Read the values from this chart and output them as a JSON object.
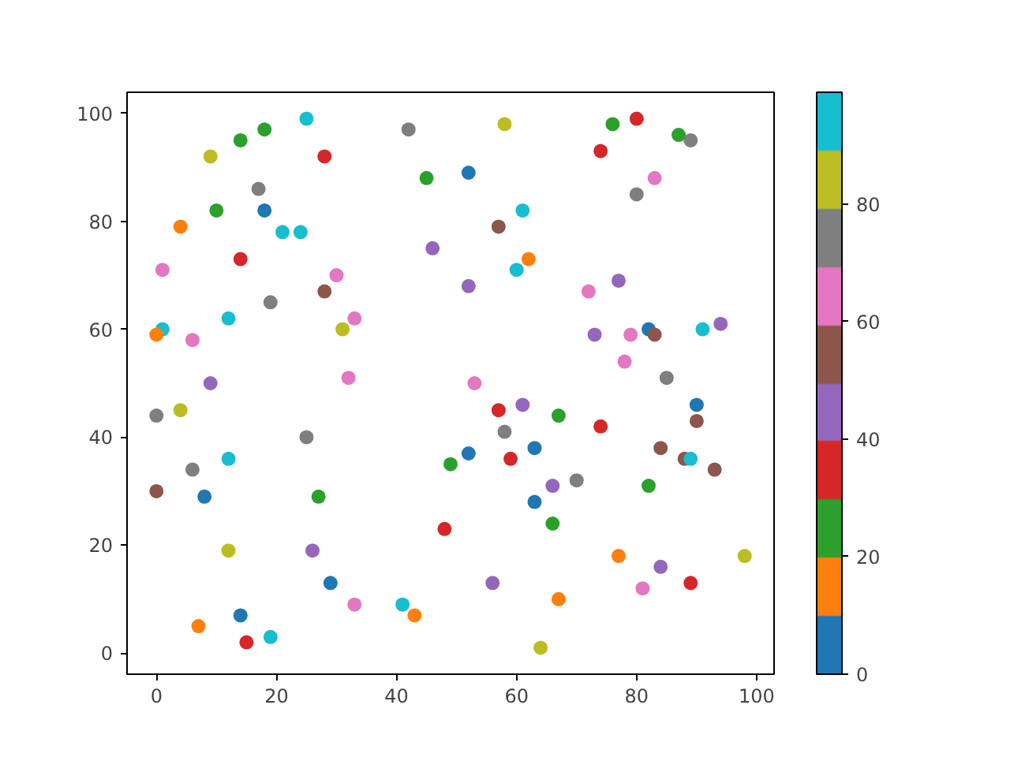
{
  "chart_data": {
    "type": "scatter",
    "x": [
      1,
      0,
      1,
      4,
      9,
      10,
      14,
      18,
      25,
      28,
      17,
      18,
      21,
      24,
      14,
      30,
      28,
      19,
      12,
      33,
      31,
      6,
      9,
      32,
      0,
      4,
      25,
      12,
      6,
      0,
      8,
      27,
      12,
      26,
      29,
      33,
      41,
      43,
      7,
      14,
      15,
      19,
      42,
      58,
      45,
      52,
      46,
      61,
      57,
      60,
      62,
      52,
      76,
      80,
      74,
      87,
      89,
      83,
      80,
      72,
      77,
      73,
      79,
      82,
      83,
      91,
      94,
      78,
      85,
      53,
      57,
      61,
      58,
      67,
      74,
      90,
      90,
      84,
      88,
      89,
      93,
      59,
      63,
      52,
      49,
      66,
      70,
      82,
      63,
      66,
      48,
      77,
      98,
      84,
      81,
      89,
      56,
      67,
      64
    ],
    "values": [
      60,
      59,
      71,
      79,
      92,
      82,
      95,
      97,
      99,
      92,
      86,
      82,
      78,
      78,
      73,
      70,
      67,
      65,
      62,
      62,
      60,
      58,
      50,
      51,
      44,
      45,
      40,
      36,
      34,
      30,
      29,
      29,
      19,
      19,
      13,
      9,
      9,
      7,
      5,
      7,
      2,
      3,
      97,
      98,
      88,
      89,
      75,
      82,
      79,
      71,
      73,
      68,
      98,
      99,
      93,
      96,
      95,
      88,
      85,
      67,
      69,
      59,
      59,
      60,
      59,
      60,
      61,
      54,
      51,
      50,
      45,
      46,
      41,
      44,
      42,
      46,
      43,
      38,
      36,
      36,
      34,
      36,
      38,
      37,
      35,
      31,
      32,
      31,
      28,
      24,
      23,
      18,
      18,
      16,
      12,
      13,
      13,
      10,
      1
    ],
    "cvalues": [
      95,
      15,
      65,
      15,
      85,
      25,
      25,
      25,
      95,
      35,
      75,
      5,
      95,
      95,
      35,
      65,
      55,
      75,
      95,
      65,
      85,
      65,
      45,
      65,
      75,
      85,
      75,
      95,
      75,
      55,
      5,
      25,
      85,
      45,
      5,
      65,
      95,
      15,
      15,
      5,
      35,
      95,
      75,
      85,
      25,
      5,
      45,
      95,
      55,
      95,
      15,
      45,
      25,
      35,
      35,
      25,
      75,
      65,
      75,
      65,
      45,
      45,
      65,
      5,
      55,
      95,
      45,
      65,
      75,
      65,
      35,
      45,
      75,
      25,
      35,
      5,
      55,
      55,
      55,
      95,
      55,
      35,
      5,
      5,
      25,
      45,
      75,
      25,
      5,
      25,
      35,
      15,
      85,
      45,
      65,
      35,
      45,
      15,
      85
    ],
    "clim": [
      0,
      99
    ],
    "cticks": [
      0,
      20,
      40,
      60,
      80
    ],
    "xlim": [
      -4.9,
      102.9
    ],
    "ylim": [
      -3.9,
      103.9
    ],
    "xticks": [
      0,
      20,
      40,
      60,
      80,
      100
    ],
    "yticks": [
      0,
      20,
      40,
      60,
      80,
      100
    ],
    "marker": "circle",
    "grid": false
  }
}
